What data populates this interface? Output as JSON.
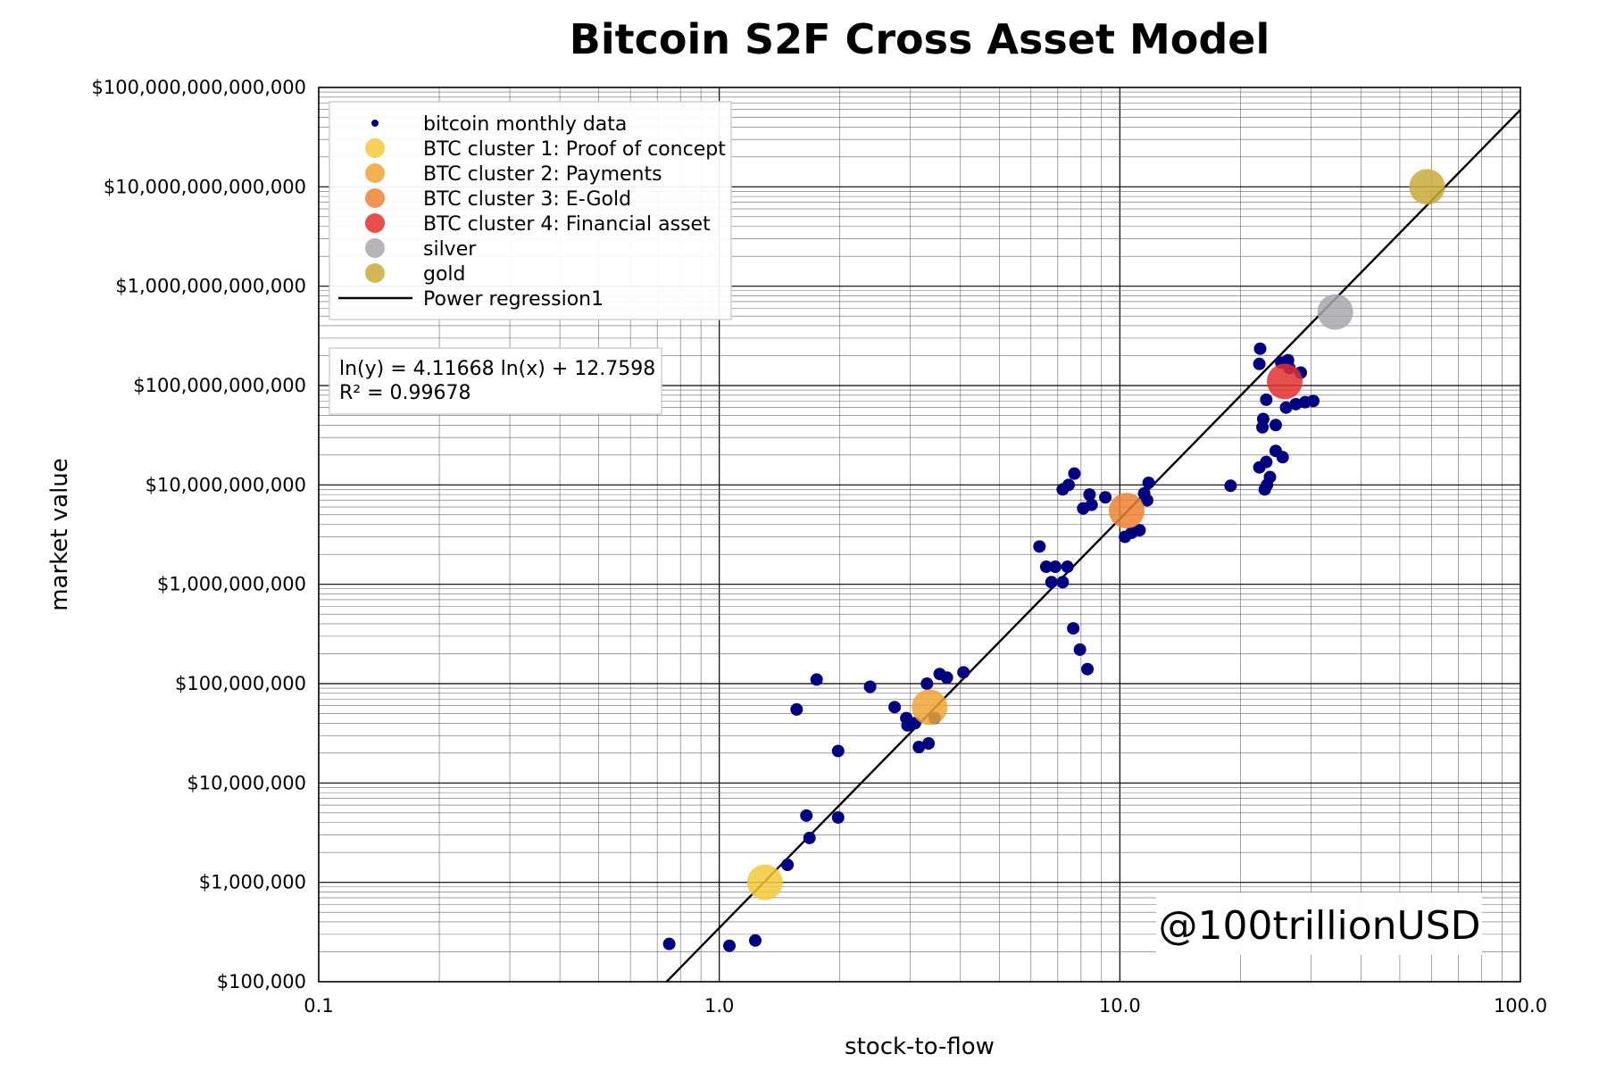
{
  "chart_data": {
    "type": "scatter",
    "title": "Bitcoin S2F Cross Asset Model",
    "xlabel": "stock-to-flow",
    "ylabel": "market value",
    "x_scale": "log",
    "y_scale": "log",
    "xlim": [
      0.1,
      100
    ],
    "ylim": [
      100000,
      100000000000000
    ],
    "grid": true,
    "legend_position": "upper-left",
    "x_tick_labels": [
      "0.1",
      "1.0",
      "10.0",
      "100.0"
    ],
    "x_tick_values": [
      0.1,
      1,
      10,
      100
    ],
    "y_tick_labels": [
      "$100,000",
      "$1,000,000",
      "$10,000,000",
      "$100,000,000",
      "$1,000,000,000",
      "$10,000,000,000",
      "$100,000,000,000",
      "$1,000,000,000,000",
      "$10,000,000,000,000",
      "$100,000,000,000,000"
    ],
    "y_tick_values": [
      100000,
      1000000,
      10000000,
      100000000,
      1000000000,
      10000000000,
      100000000000,
      1000000000000,
      10000000000000,
      100000000000000
    ],
    "series": [
      {
        "name": "bitcoin monthly data",
        "color": "#000080",
        "marker_size": "small",
        "points": [
          [
            0.75,
            240000
          ],
          [
            1.06,
            230000
          ],
          [
            1.23,
            260000
          ],
          [
            1.48,
            1500000
          ],
          [
            1.65,
            4700000
          ],
          [
            1.68,
            2800000
          ],
          [
            1.98,
            4500000
          ],
          [
            1.98,
            21000000
          ],
          [
            1.56,
            55000000
          ],
          [
            1.75,
            110000000
          ],
          [
            2.38,
            93000000
          ],
          [
            2.74,
            58000000
          ],
          [
            2.93,
            45000000
          ],
          [
            2.95,
            38000000
          ],
          [
            3.08,
            40000000
          ],
          [
            3.15,
            23000000
          ],
          [
            3.3,
            100000000
          ],
          [
            3.33,
            25000000
          ],
          [
            3.45,
            45000000
          ],
          [
            3.55,
            125000000
          ],
          [
            3.7,
            115000000
          ],
          [
            4.07,
            130000000
          ],
          [
            6.3,
            2400000000
          ],
          [
            6.55,
            1500000000
          ],
          [
            6.75,
            1050000000
          ],
          [
            6.9,
            1500000000
          ],
          [
            7.2,
            1050000000
          ],
          [
            7.4,
            1500000000
          ],
          [
            7.2,
            9000000000
          ],
          [
            7.45,
            10000000000
          ],
          [
            7.7,
            13000000000
          ],
          [
            7.65,
            360000000
          ],
          [
            7.95,
            220000000
          ],
          [
            8.3,
            140000000
          ],
          [
            8.1,
            5800000000
          ],
          [
            8.4,
            8000000000
          ],
          [
            8.5,
            6300000000
          ],
          [
            9.2,
            7500000000
          ],
          [
            10.3,
            3000000000
          ],
          [
            10.7,
            3300000000
          ],
          [
            11.2,
            3500000000
          ],
          [
            11.5,
            8200000000
          ],
          [
            11.7,
            7000000000
          ],
          [
            11.8,
            10500000000
          ],
          [
            18.9,
            9800000000
          ],
          [
            22.3,
            15000000000
          ],
          [
            23.0,
            9000000000
          ],
          [
            23.3,
            10000000000
          ],
          [
            23.7,
            12000000000
          ],
          [
            23.2,
            17000000000
          ],
          [
            24.5,
            22000000000
          ],
          [
            25.5,
            19000000000
          ],
          [
            22.7,
            38000000000
          ],
          [
            22.8,
            46000000000
          ],
          [
            24.5,
            40000000000
          ],
          [
            23.2,
            72000000000
          ],
          [
            22.3,
            165000000000
          ],
          [
            22.4,
            235000000000
          ],
          [
            25.3,
            170000000000
          ],
          [
            26.3,
            180000000000
          ],
          [
            26.5,
            150000000000
          ],
          [
            28.3,
            135000000000
          ],
          [
            26.0,
            60000000000
          ],
          [
            27.5,
            65000000000
          ],
          [
            29.0,
            68000000000
          ],
          [
            30.4,
            70000000000
          ]
        ]
      },
      {
        "name": "BTC cluster 1: Proof of concept",
        "color": "#f5c93a",
        "marker_size": "large",
        "points": [
          [
            1.3,
            1000000
          ]
        ]
      },
      {
        "name": "BTC cluster 2: Payments",
        "color": "#f0a535",
        "marker_size": "large",
        "points": [
          [
            3.35,
            58000000
          ]
        ]
      },
      {
        "name": "BTC cluster 3: E-Gold",
        "color": "#ed8232",
        "marker_size": "large",
        "points": [
          [
            10.4,
            5500000000
          ]
        ]
      },
      {
        "name": "BTC cluster 4: Financial asset",
        "color": "#e32f2f",
        "marker_size": "large",
        "points": [
          [
            25.8,
            110000000000
          ]
        ]
      },
      {
        "name": "silver",
        "color": "#a8a8ad",
        "marker_size": "large",
        "points": [
          [
            34.5,
            550000000000
          ]
        ]
      },
      {
        "name": "gold",
        "color": "#c9aa3a",
        "marker_size": "large",
        "points": [
          [
            58.5,
            10000000000000
          ]
        ]
      }
    ],
    "regression": {
      "name": "Power regression1",
      "color": "#000000",
      "slope": 4.11668,
      "intercept": 12.7598,
      "equation": "ln(y) = 4.11668 ln(x) + 12.7598",
      "r_squared": "R² = 0.99678"
    },
    "annotations": {
      "watermark": "@100trillionUSD"
    }
  }
}
